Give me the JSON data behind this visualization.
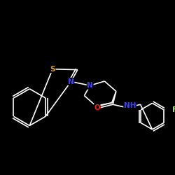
{
  "background_color": "#000000",
  "atom_colors": {
    "S": "#DAA520",
    "N": "#4040FF",
    "O": "#FF2000",
    "F": "#90EE40",
    "C": "#FFFFFF",
    "H": "#FFFFFF"
  },
  "bond_color": "#FFFFFF",
  "bond_width": 1.2,
  "font_size_atom": 7.5,
  "fig_size": [
    2.5,
    2.5
  ],
  "dpi": 100
}
